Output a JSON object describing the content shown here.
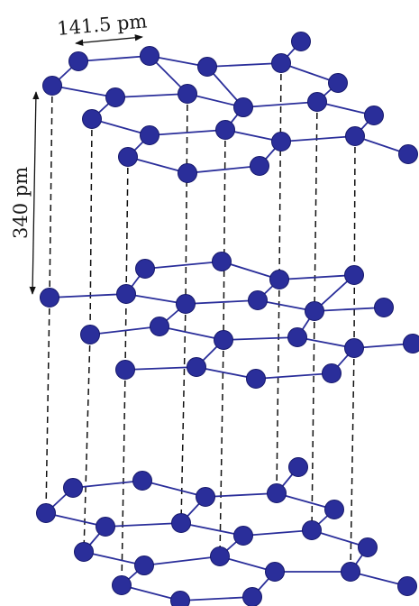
{
  "labels": {
    "bond_length": "141.5 pm",
    "interlayer_distance": "340 pm"
  },
  "colors": {
    "atom": "#2a2e9a",
    "atom_edge": "#16186b",
    "bond": "#2a2e9a",
    "guide": "#111111",
    "text": "#1a1a1a"
  }
}
